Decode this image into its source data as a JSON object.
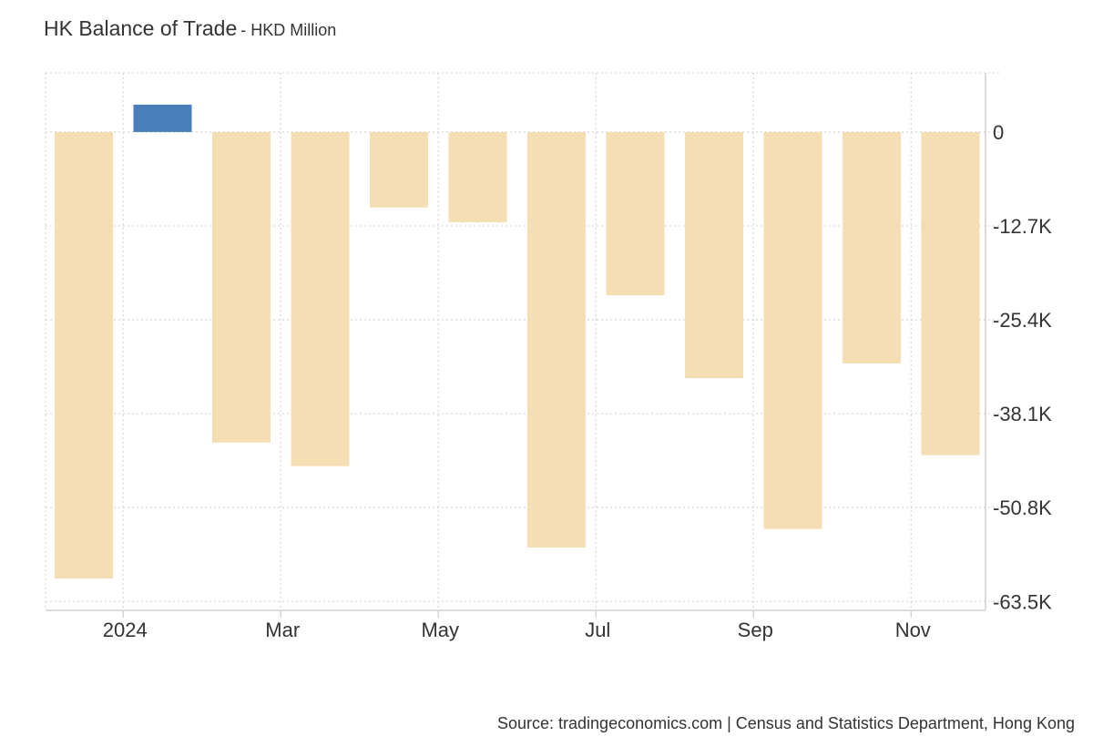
{
  "header": {
    "title": "HK Balance of Trade",
    "subtitle": "- HKD Million"
  },
  "footer": {
    "source": "Source: tradingeconomics.com | Census and Statistics Department, Hong Kong"
  },
  "chart_data": {
    "type": "bar",
    "title": "HK Balance of Trade",
    "subtitle": "- HKD Million",
    "xlabel": "",
    "ylabel": "",
    "categories": [
      "Dec 2023",
      "Jan 2024",
      "Feb 2024",
      "Mar 2024",
      "Apr 2024",
      "May 2024",
      "Jun 2024",
      "Jul 2024",
      "Aug 2024",
      "Sep 2024",
      "Oct 2024",
      "Nov 2024"
    ],
    "values": [
      -60400,
      3700,
      -42000,
      -45200,
      -10200,
      -12200,
      -56200,
      -22100,
      -33300,
      -53700,
      -31300,
      -43700
    ],
    "x_tick_labels": [
      {
        "label": "2024",
        "category": "Jan 2024"
      },
      {
        "label": "Mar",
        "category": "Mar 2024"
      },
      {
        "label": "May",
        "category": "May 2024"
      },
      {
        "label": "Jul",
        "category": "Jul 2024"
      },
      {
        "label": "Sep",
        "category": "Sep 2024"
      },
      {
        "label": "Nov",
        "category": "Nov 2024"
      }
    ],
    "y_ticks": [
      {
        "value": 0,
        "label": "0"
      },
      {
        "value": -12700,
        "label": "-12.7K"
      },
      {
        "value": -25400,
        "label": "-25.4K"
      },
      {
        "value": -38100,
        "label": "-38.1K"
      },
      {
        "value": -50800,
        "label": "-50.8K"
      },
      {
        "value": -63500,
        "label": "-63.5K"
      }
    ],
    "ylim": [
      -64700,
      8000
    ],
    "y_axis_position": "right",
    "grid": true,
    "colors": {
      "positive": "#4a7ebb",
      "negative": "#f5deb3",
      "grid": "#d9d9d9",
      "axis": "#d0d0d0"
    }
  }
}
